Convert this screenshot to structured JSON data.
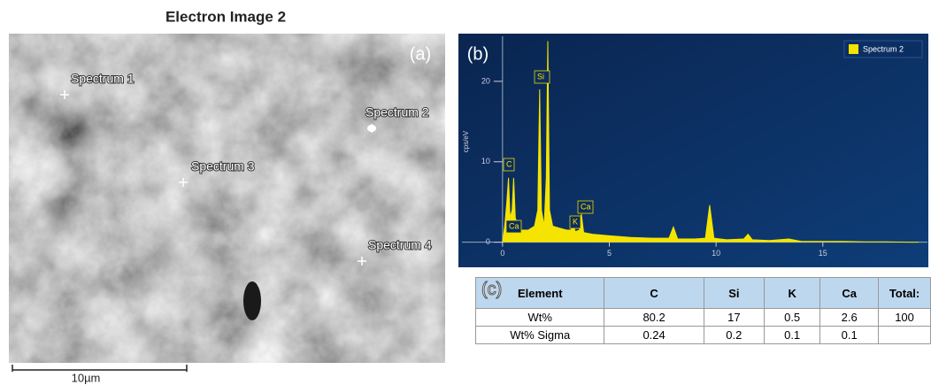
{
  "image": {
    "title": "Electron Image 2",
    "panel_label": "(a)",
    "spectrum_labels": [
      "Spectrum 1",
      "Spectrum 2",
      "Spectrum 3",
      "Spectrum 4"
    ],
    "scale_bar": "10µm"
  },
  "chart_data": {
    "type": "area",
    "panel_label": "(b)",
    "y_label": "cps/eV",
    "x": [
      0,
      0.1,
      0.2,
      0.28,
      0.35,
      0.45,
      0.52,
      0.6,
      0.8,
      1.0,
      1.2,
      1.5,
      1.65,
      1.74,
      1.82,
      1.95,
      2.05,
      2.12,
      2.2,
      2.35,
      2.6,
      3.0,
      3.2,
      3.31,
      3.4,
      3.6,
      3.69,
      3.8,
      4.2,
      5,
      6,
      7,
      7.8,
      8.0,
      8.2,
      9,
      9.5,
      9.7,
      9.9,
      10.5,
      11.3,
      11.5,
      11.7,
      12.5,
      13.4,
      14,
      15,
      16,
      17,
      18,
      19,
      19.5
    ],
    "series": [
      {
        "name": "Spectrum 2",
        "color": "#f5e400",
        "values": [
          0,
          2,
          5,
          8,
          3,
          4,
          8,
          3,
          1.5,
          1.5,
          1.5,
          2,
          4,
          19,
          4,
          2,
          8,
          25,
          4,
          2,
          1.8,
          1.5,
          1.5,
          2.5,
          1.3,
          1.5,
          3.5,
          1.2,
          1,
          0.8,
          0.6,
          0.5,
          0.5,
          1.9,
          0.4,
          0.4,
          0.5,
          4.6,
          0.5,
          0.3,
          0.4,
          1,
          0.3,
          0.2,
          0.4,
          0.1,
          0.1,
          0.1,
          0.05,
          0.05,
          0,
          0
        ]
      }
    ],
    "peak_labels": [
      "C",
      "Ca",
      "Si",
      "K",
      "Ca"
    ],
    "xlim": [
      -1.9,
      19.9
    ],
    "ylim": [
      -2.9,
      25.6
    ],
    "xticks": [
      0,
      5,
      10,
      15
    ],
    "yticks": [
      0,
      10,
      20
    ],
    "legend": "top-right"
  },
  "table": {
    "panel_label": "(c)",
    "header": [
      "Element",
      "C",
      "Si",
      "K",
      "Ca",
      "Total:"
    ],
    "rows": [
      [
        "Wt%",
        80.2,
        17,
        0.5,
        2.6,
        100
      ],
      [
        "Wt% Sigma",
        0.24,
        0.2,
        0.1,
        0.1
      ]
    ]
  }
}
